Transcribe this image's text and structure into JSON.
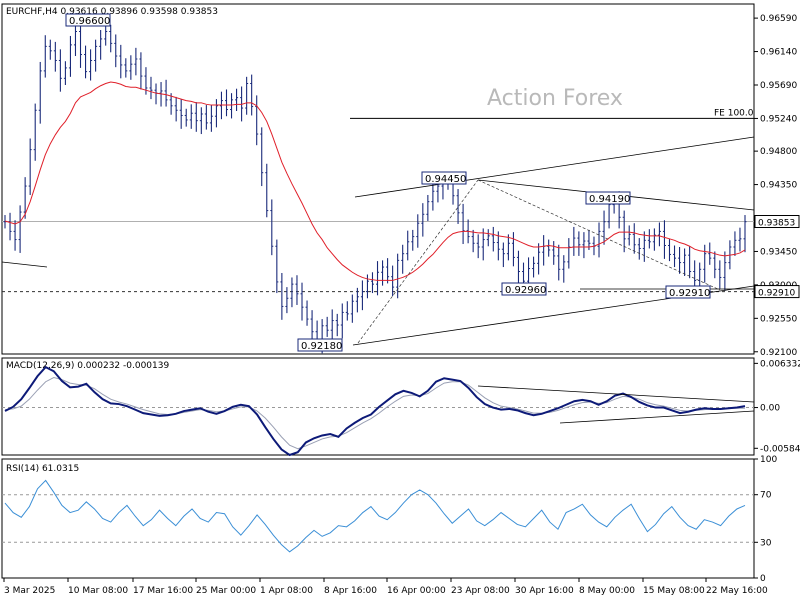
{
  "header": {
    "symbol": "EURCHF,H4",
    "open": "0.93616",
    "high": "0.93896",
    "low": "0.93598",
    "close": "0.93853"
  },
  "watermark": "Action Forex",
  "colors": {
    "price_bars": "#1a2a7a",
    "ma": "#e0202a",
    "macd_line": "#0d1a78",
    "macd_signal": "#9aa0b4",
    "rsi": "#3b8fd6",
    "trendline": "#000000",
    "frame": "#000000"
  },
  "chart_data": [
    {
      "type": "line",
      "panel": "price",
      "title": "EURCHF,H4",
      "x_tick_labels": [
        "3 Mar 2025",
        "10 Mar 08:00",
        "17 Mar 16:00",
        "25 Mar 00:00",
        "1 Apr 08:00",
        "8 Apr 16:00",
        "16 Apr 00:00",
        "23 Apr 08:00",
        "30 Apr 16:00",
        "8 May 00:00",
        "15 May 08:00",
        "22 May 16:00"
      ],
      "y_tick_labels": [
        "0.96590",
        "0.96140",
        "0.95690",
        "0.95240",
        "0.94800",
        "0.94350",
        "0.93450",
        "0.93000",
        "0.92550",
        "0.92100"
      ],
      "ylim": [
        0.9207,
        0.9678
      ],
      "series": [
        {
          "name": "",
          "values": [
            0.9385,
            0.9372,
            0.9361,
            0.9398,
            0.9433,
            0.9482,
            0.9535,
            0.9588,
            0.9621,
            0.9615,
            0.9602,
            0.9578,
            0.9592,
            0.9623,
            0.9641,
            0.961,
            0.9587,
            0.9602,
            0.9621,
            0.9631,
            0.9641,
            0.9625,
            0.9608,
            0.9596,
            0.9588,
            0.9597,
            0.9604,
            0.9581,
            0.9565,
            0.9562,
            0.9558,
            0.9561,
            0.9549,
            0.9541,
            0.9535,
            0.9528,
            0.9522,
            0.9531,
            0.9521,
            0.953,
            0.9518,
            0.9527,
            0.9541,
            0.9548,
            0.9536,
            0.9549,
            0.9552,
            0.9538,
            0.9571,
            0.954,
            0.9503,
            0.9451,
            0.94,
            0.9352,
            0.9304,
            0.9271,
            0.9282,
            0.9301,
            0.9288,
            0.927,
            0.9254,
            0.9237,
            0.9226,
            0.9245,
            0.9239,
            0.9252,
            0.9246,
            0.9263,
            0.9261,
            0.9278,
            0.9284,
            0.9291,
            0.9305,
            0.9301,
            0.9317,
            0.9324,
            0.9311,
            0.9297,
            0.9333,
            0.9342,
            0.9358,
            0.9365,
            0.9383,
            0.9395,
            0.9412,
            0.9426,
            0.9433,
            0.944,
            0.9437,
            0.942,
            0.9397,
            0.9373,
            0.9365,
            0.9356,
            0.9351,
            0.9361,
            0.9366,
            0.9357,
            0.9348,
            0.9342,
            0.9356,
            0.9337,
            0.9318,
            0.9305,
            0.9322,
            0.9329,
            0.9344,
            0.9352,
            0.9347,
            0.9339,
            0.9321,
            0.9331,
            0.9351,
            0.9363,
            0.9354,
            0.9359,
            0.9356,
            0.9352,
            0.9372,
            0.9385,
            0.9408,
            0.9411,
            0.9391,
            0.9362,
            0.9368,
            0.9354,
            0.9349,
            0.936,
            0.9358,
            0.9367,
            0.9372,
            0.9353,
            0.9341,
            0.9336,
            0.933,
            0.934,
            0.9318,
            0.9306,
            0.9321,
            0.9342,
            0.9336,
            0.9321,
            0.931,
            0.933,
            0.9351,
            0.936,
            0.9362,
            0.9385
          ]
        },
        {
          "name": "",
          "values": [
            0.9386,
            0.9384,
            0.9382,
            0.9385,
            0.9395,
            0.9412,
            0.9433,
            0.9455,
            0.9475,
            0.949,
            0.9502,
            0.9512,
            0.952,
            0.9531,
            0.9545,
            0.9553,
            0.9556,
            0.9559,
            0.9564,
            0.9568,
            0.9571,
            0.9573,
            0.9572,
            0.957,
            0.9567,
            0.9566,
            0.9566,
            0.9564,
            0.9562,
            0.956,
            0.9558,
            0.9557,
            0.9556,
            0.9554,
            0.9552,
            0.955,
            0.9548,
            0.9547,
            0.9545,
            0.9545,
            0.9543,
            0.9542,
            0.9542,
            0.9542,
            0.9542,
            0.9542,
            0.9543,
            0.9543,
            0.9545,
            0.9545,
            0.9541,
            0.9532,
            0.952,
            0.9503,
            0.9484,
            0.9465,
            0.945,
            0.9436,
            0.9423,
            0.941,
            0.9396,
            0.9382,
            0.937,
            0.9361,
            0.935,
            0.9342,
            0.9334,
            0.9327,
            0.9322,
            0.9317,
            0.9313,
            0.931,
            0.9308,
            0.9307,
            0.9306,
            0.9306,
            0.9306,
            0.9306,
            0.9308,
            0.931,
            0.9313,
            0.9317,
            0.9322,
            0.9328,
            0.9335,
            0.9341,
            0.9349,
            0.9357,
            0.9364,
            0.9369,
            0.9371,
            0.9372,
            0.9372,
            0.9371,
            0.937,
            0.937,
            0.9369,
            0.9368,
            0.9366,
            0.9365,
            0.9364,
            0.9362,
            0.9359,
            0.9356,
            0.9353,
            0.9351,
            0.9351,
            0.9352,
            0.9353,
            0.9352,
            0.935,
            0.935,
            0.935,
            0.9351,
            0.9351,
            0.9351,
            0.9351,
            0.9352,
            0.9355,
            0.9358,
            0.9363,
            0.9368,
            0.9371,
            0.9371,
            0.9371,
            0.937,
            0.9368,
            0.9367,
            0.9366,
            0.9366,
            0.9366,
            0.9364,
            0.9362,
            0.936,
            0.9357,
            0.9355,
            0.9352,
            0.9348,
            0.9346,
            0.9345,
            0.9344,
            0.9342,
            0.934,
            0.9339,
            0.934,
            0.9341,
            0.9343,
            0.9347
          ]
        }
      ],
      "horizontal_levels": [
        {
          "label": "0.93853",
          "value": 0.93853,
          "style": "solid-gray"
        },
        {
          "label": "0.92910",
          "value": 0.9291,
          "style": "dashed"
        },
        {
          "label": "FE 100.0",
          "value": 0.9524,
          "style": "solid"
        }
      ],
      "annotations": [
        {
          "label": "0.96600",
          "value": 0.966
        },
        {
          "label": "0.94450",
          "value": 0.9445
        },
        {
          "label": "0.94190",
          "value": 0.9419
        },
        {
          "label": "0.92960",
          "value": 0.9296
        },
        {
          "label": "0.92910",
          "value": 0.9291
        },
        {
          "label": "0.92180",
          "value": 0.9218
        }
      ]
    },
    {
      "type": "line",
      "panel": "macd",
      "title": "MACD(12,26,9) 0.000232 -0.000139",
      "y_tick_labels": [
        "0.006332",
        "0.00",
        "-0.00584"
      ],
      "ylim": [
        -0.0068,
        0.0071
      ],
      "series": [
        {
          "name": "",
          "values": [
            -0.0005,
            0.0001,
            0.0012,
            0.0028,
            0.0045,
            0.0058,
            0.0052,
            0.0038,
            0.0029,
            0.003,
            0.0034,
            0.0022,
            0.0012,
            0.0006,
            0.0005,
            0.0002,
            -0.0003,
            -0.0008,
            -0.001,
            -0.0012,
            -0.0011,
            -0.0009,
            -0.0005,
            -0.0003,
            -0.0001,
            -0.0006,
            -0.0009,
            -0.0005,
            0.0001,
            0.0004,
            0.0002,
            -0.001,
            -0.0028,
            -0.0045,
            -0.006,
            -0.0068,
            -0.0064,
            -0.005,
            -0.0044,
            -0.004,
            -0.0038,
            -0.0042,
            -0.003,
            -0.0022,
            -0.0015,
            -0.001,
            0.0001,
            0.001,
            0.0019,
            0.0024,
            0.0021,
            0.0016,
            0.0024,
            0.0037,
            0.0042,
            0.004,
            0.0038,
            0.0028,
            0.0015,
            0.0005,
            0.0,
            -0.0003,
            -0.0002,
            -0.0004,
            -0.0008,
            -0.0011,
            -0.0009,
            -0.0005,
            -0.0001,
            0.0004,
            0.0009,
            0.0011,
            0.0009,
            0.0004,
            0.0009,
            0.0017,
            0.002,
            0.0015,
            0.0008,
            0.0003,
            0.0,
            0.0,
            -0.0004,
            -0.0008,
            -0.0006,
            -0.0003,
            -0.0001,
            -0.0002,
            -0.0002,
            -0.0001,
            0.0,
            0.0002
          ]
        },
        {
          "name": "",
          "values": [
            -0.0003,
            -0.0002,
            0.0002,
            0.0012,
            0.0025,
            0.0037,
            0.0043,
            0.004,
            0.0035,
            0.0033,
            0.0032,
            0.0027,
            0.0019,
            0.0012,
            0.0008,
            0.0005,
            0.0001,
            -0.0003,
            -0.0006,
            -0.0009,
            -0.001,
            -0.0009,
            -0.0007,
            -0.0005,
            -0.0003,
            -0.0004,
            -0.0006,
            -0.0005,
            -0.0002,
            0.0001,
            0.0001,
            -0.0005,
            -0.0015,
            -0.0028,
            -0.0042,
            -0.0054,
            -0.0059,
            -0.0055,
            -0.005,
            -0.0045,
            -0.0042,
            -0.0041,
            -0.0036,
            -0.0029,
            -0.0022,
            -0.0016,
            -0.0008,
            0.0001,
            0.0009,
            0.0016,
            0.0018,
            0.0017,
            0.002,
            0.0028,
            0.0035,
            0.0037,
            0.0037,
            0.0032,
            0.0023,
            0.0014,
            0.0007,
            0.0002,
            0.0,
            -0.0002,
            -0.0005,
            -0.0008,
            -0.0008,
            -0.0007,
            -0.0004,
            0.0,
            0.0004,
            0.0007,
            0.0008,
            0.0006,
            0.0007,
            0.0012,
            0.0016,
            0.0015,
            0.0012,
            0.0007,
            0.0004,
            0.0002,
            -0.0001,
            -0.0004,
            -0.0005,
            -0.0004,
            -0.0003,
            -0.0002,
            -0.0002,
            -0.0001,
            -0.0001,
            -0.0001
          ]
        }
      ]
    },
    {
      "type": "line",
      "panel": "rsi",
      "title": "RSI(14) 61.0315",
      "y_tick_labels": [
        "100",
        "70",
        "30",
        "0"
      ],
      "ylim": [
        0,
        100
      ],
      "series": [
        {
          "name": "",
          "values": [
            63,
            55,
            51,
            60,
            75,
            82,
            72,
            61,
            55,
            57,
            64,
            58,
            50,
            47,
            55,
            61,
            52,
            44,
            49,
            57,
            50,
            44,
            52,
            58,
            50,
            47,
            55,
            54,
            43,
            36,
            44,
            53,
            45,
            36,
            28,
            22,
            27,
            34,
            40,
            35,
            38,
            44,
            43,
            48,
            55,
            60,
            52,
            49,
            55,
            63,
            70,
            74,
            70,
            63,
            54,
            46,
            52,
            58,
            48,
            44,
            49,
            55,
            50,
            45,
            43,
            50,
            57,
            47,
            41,
            55,
            58,
            62,
            53,
            47,
            43,
            51,
            57,
            62,
            50,
            39,
            45,
            54,
            60,
            51,
            44,
            41,
            49,
            47,
            44,
            52,
            58,
            61
          ]
        }
      ]
    }
  ]
}
